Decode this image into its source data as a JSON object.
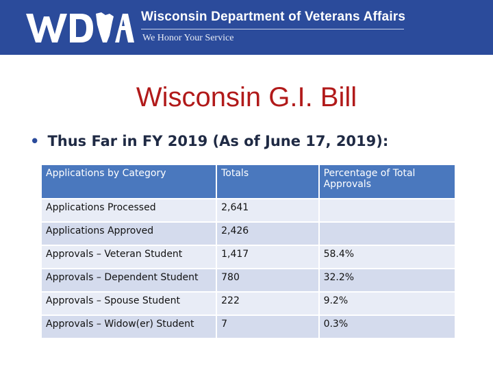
{
  "header": {
    "logo_text": "WDVA",
    "org_name": "Wisconsin Department of Veterans Affairs",
    "tagline": "We Honor Your Service"
  },
  "title": "Wisconsin G.I. Bill",
  "bullet": {
    "marker": "•",
    "text": "Thus Far in FY 2019 (As of June 17, 2019):"
  },
  "table": {
    "headers": [
      "Applications by Category",
      "Totals",
      "Percentage of Total Approvals"
    ],
    "rows": [
      [
        "Applications Processed",
        "2,641",
        ""
      ],
      [
        "Applications Approved",
        "2,426",
        ""
      ],
      [
        "Approvals – Veteran Student",
        "1,417",
        "58.4%"
      ],
      [
        "Approvals – Dependent Student",
        "780",
        "32.2%"
      ],
      [
        "Approvals – Spouse Student",
        "222",
        "9.2%"
      ],
      [
        "Approvals – Widow(er) Student",
        "7",
        "0.3%"
      ]
    ]
  },
  "colors": {
    "banner": "#2b4b9b",
    "title": "#b11a1a",
    "table_header": "#4a78be",
    "row_light": "#e8ecf6",
    "row_dark": "#d4dbed"
  }
}
